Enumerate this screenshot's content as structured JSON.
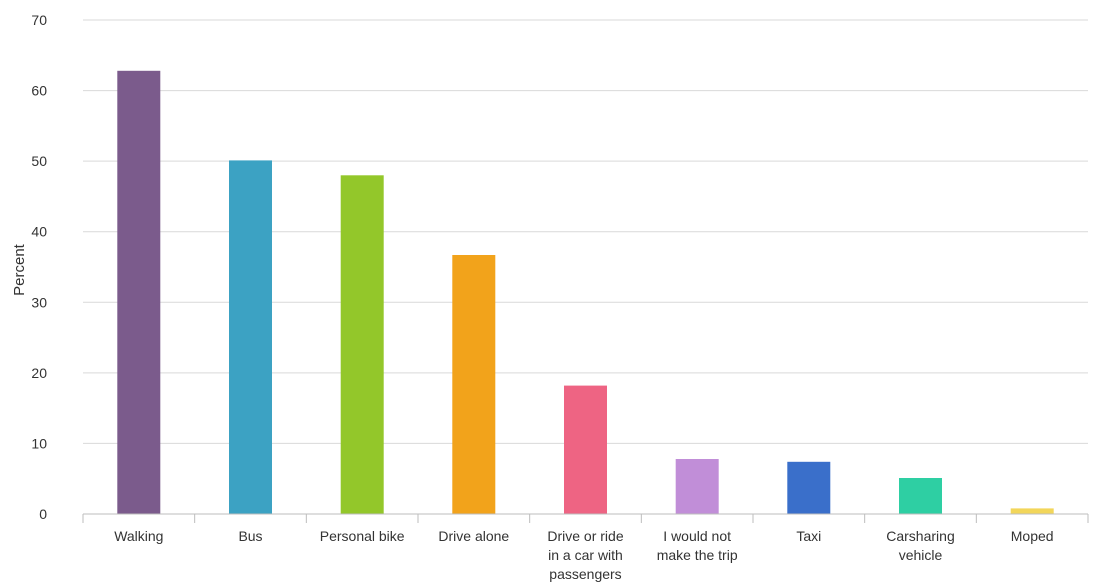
{
  "chart_data": {
    "type": "bar",
    "title": "",
    "xlabel": "",
    "ylabel": "Percent",
    "ylim": [
      0,
      70
    ],
    "yticks": [
      0,
      10,
      20,
      30,
      40,
      50,
      60,
      70
    ],
    "grid": true,
    "categories": [
      "Walking",
      "Bus",
      "Personal bike",
      "Drive alone",
      "Drive or ride in a car with passengers",
      "I would not make the trip",
      "Taxi",
      "Carsharing vehicle",
      "Moped"
    ],
    "category_lines": [
      [
        "Walking"
      ],
      [
        "Bus"
      ],
      [
        "Personal bike"
      ],
      [
        "Drive alone"
      ],
      [
        "Drive or ride",
        "in a car with",
        "passengers"
      ],
      [
        "I would not",
        "make the trip"
      ],
      [
        "Taxi"
      ],
      [
        "Carsharing",
        "vehicle"
      ],
      [
        "Moped"
      ]
    ],
    "values": [
      62.8,
      50.1,
      48.0,
      36.7,
      18.2,
      7.8,
      7.4,
      5.1,
      0.8
    ],
    "colors": [
      "#7b5b8c",
      "#3ca2c3",
      "#93c72a",
      "#f2a31b",
      "#ee6483",
      "#c18ed8",
      "#3a6fca",
      "#2ecfa3",
      "#f2d65a"
    ]
  }
}
